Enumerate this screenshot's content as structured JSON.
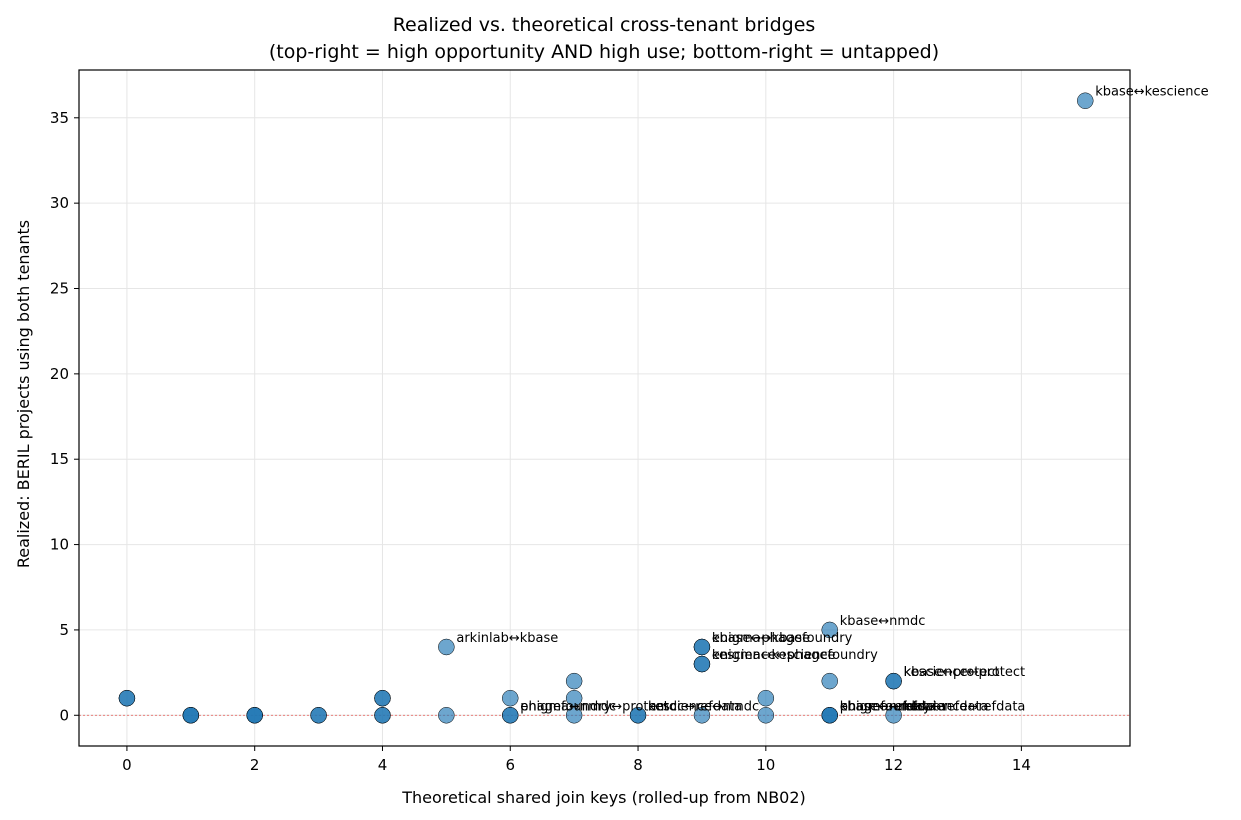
{
  "chart_data": {
    "type": "scatter",
    "title_line1": "Realized vs. theoretical cross-tenant bridges",
    "title_line2": "(top-right = high opportunity AND high use; bottom-right = untapped)",
    "xlabel": "Theoretical shared join keys (rolled-up from NB02)",
    "ylabel": "Realized: BERIL projects using both tenants",
    "xlim": [
      -0.75,
      15.7
    ],
    "ylim": [
      -1.8,
      37.8
    ],
    "x_ticks": [
      0,
      2,
      4,
      6,
      8,
      10,
      12,
      14
    ],
    "y_ticks": [
      0,
      5,
      10,
      15,
      20,
      25,
      30,
      35
    ],
    "grid": true,
    "zero_reference_line": true,
    "colors": {
      "point": "#1f77b4",
      "edge": "#000000",
      "refline": "#e8706a",
      "grid": "#e6e6e6"
    },
    "points": [
      {
        "x": 15,
        "y": 36
      },
      {
        "x": 11,
        "y": 5
      },
      {
        "x": 5,
        "y": 4
      },
      {
        "x": 9,
        "y": 4
      },
      {
        "x": 9,
        "y": 4
      },
      {
        "x": 9,
        "y": 3
      },
      {
        "x": 9,
        "y": 3
      },
      {
        "x": 12,
        "y": 2
      },
      {
        "x": 12,
        "y": 2
      },
      {
        "x": 11,
        "y": 2
      },
      {
        "x": 7,
        "y": 2
      },
      {
        "x": 0,
        "y": 1
      },
      {
        "x": 0,
        "y": 1
      },
      {
        "x": 4,
        "y": 1
      },
      {
        "x": 4,
        "y": 1
      },
      {
        "x": 6,
        "y": 1
      },
      {
        "x": 7,
        "y": 1
      },
      {
        "x": 10,
        "y": 1
      },
      {
        "x": 1,
        "y": 0
      },
      {
        "x": 1,
        "y": 0
      },
      {
        "x": 1,
        "y": 0
      },
      {
        "x": 2,
        "y": 0
      },
      {
        "x": 2,
        "y": 0
      },
      {
        "x": 2,
        "y": 0
      },
      {
        "x": 3,
        "y": 0
      },
      {
        "x": 3,
        "y": 0
      },
      {
        "x": 4,
        "y": 0
      },
      {
        "x": 4,
        "y": 0
      },
      {
        "x": 5,
        "y": 0
      },
      {
        "x": 6,
        "y": 0
      },
      {
        "x": 6,
        "y": 0
      },
      {
        "x": 7,
        "y": 0
      },
      {
        "x": 8,
        "y": 0
      },
      {
        "x": 8,
        "y": 0
      },
      {
        "x": 9,
        "y": 0
      },
      {
        "x": 10,
        "y": 0
      },
      {
        "x": 11,
        "y": 0
      },
      {
        "x": 11,
        "y": 0
      },
      {
        "x": 11,
        "y": 0
      },
      {
        "x": 12,
        "y": 0
      }
    ],
    "annotations": [
      {
        "x": 15,
        "y": 36,
        "text": "kbase↔kescience"
      },
      {
        "x": 11,
        "y": 5,
        "text": "kbase↔nmdc"
      },
      {
        "x": 5,
        "y": 4,
        "text": "arkinlab↔kbase"
      },
      {
        "x": 9,
        "y": 4,
        "text": "enigma↔kbase"
      },
      {
        "x": 9,
        "y": 4,
        "text": "kbase↔phagefoundry"
      },
      {
        "x": 9,
        "y": 3,
        "text": "enigma↔kescience"
      },
      {
        "x": 9,
        "y": 3,
        "text": "kescience↔phagefoundry"
      },
      {
        "x": 12,
        "y": 2,
        "text": "kbase↔protect"
      },
      {
        "x": 12,
        "y": 2,
        "text": "kescience↔protect"
      },
      {
        "x": 6,
        "y": 0,
        "text": "phagefoundry↔protect"
      },
      {
        "x": 6,
        "y": 0,
        "text": "enigma↔nmdc"
      },
      {
        "x": 8,
        "y": 0,
        "text": "nmdc↔refdata"
      },
      {
        "x": 8,
        "y": 0,
        "text": "kescience↔nmdc"
      },
      {
        "x": 11,
        "y": 0,
        "text": "enigma↔refdata"
      },
      {
        "x": 11,
        "y": 0,
        "text": "kbase↔refdata"
      },
      {
        "x": 11,
        "y": 0,
        "text": "phagefoundry↔refdata"
      },
      {
        "x": 12,
        "y": 0,
        "text": "kescience↔refdata"
      }
    ]
  }
}
